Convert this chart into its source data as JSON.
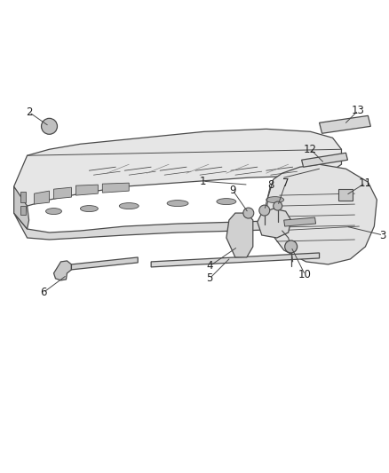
{
  "bg_color": "#ffffff",
  "line_color": "#4a4a4a",
  "fig_width": 4.38,
  "fig_height": 5.33,
  "dpi": 100,
  "label_fontsize": 8.5,
  "lw": 0.9
}
